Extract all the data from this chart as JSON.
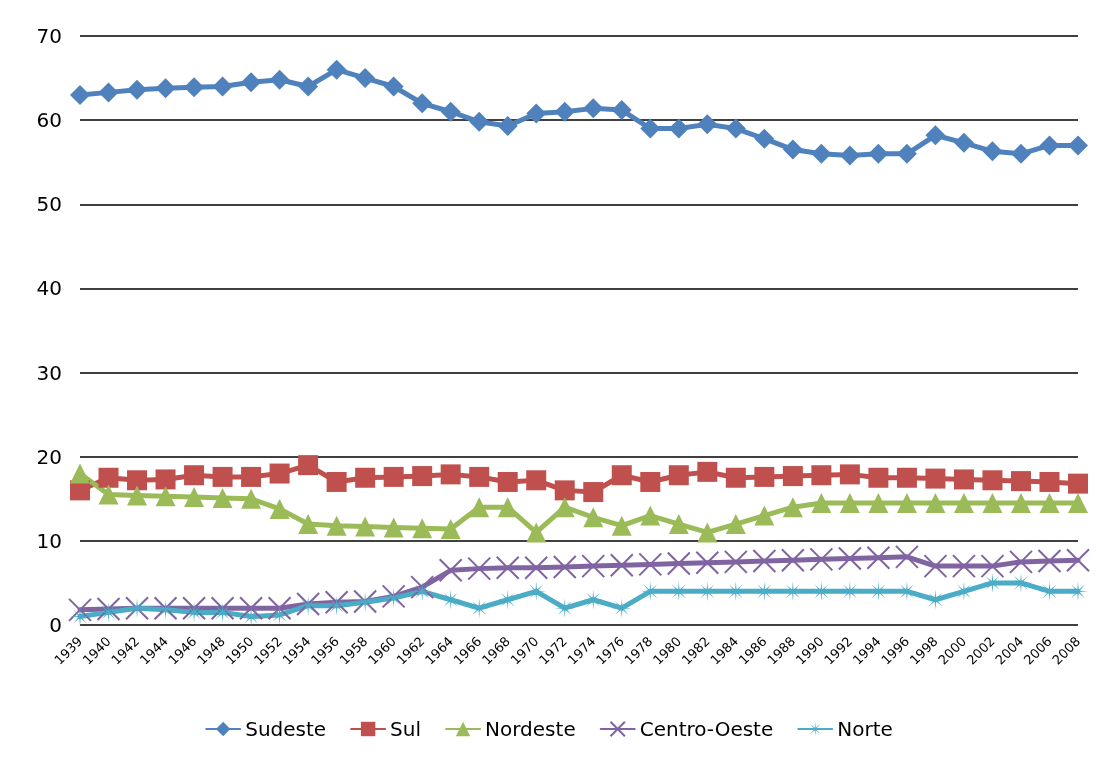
{
  "chart_data": {
    "type": "line",
    "categories": [
      "1939",
      "1940",
      "1942",
      "1944",
      "1946",
      "1948",
      "1950",
      "1952",
      "1954",
      "1956",
      "1958",
      "1960",
      "1962",
      "1964",
      "1966",
      "1968",
      "1970",
      "1972",
      "1974",
      "1976",
      "1978",
      "1980",
      "1982",
      "1984",
      "1986",
      "1988",
      "1990",
      "1992",
      "1994",
      "1996",
      "1998",
      "2000",
      "2002",
      "2004",
      "2006",
      "2008"
    ],
    "series": [
      {
        "name": "Sudeste",
        "color": "#4f81bd",
        "marker": "diamond",
        "values": [
          63,
          63.3,
          63.6,
          63.8,
          63.9,
          64,
          64.5,
          64.8,
          64,
          66,
          65,
          64,
          62,
          61,
          59.8,
          59.3,
          60.8,
          61,
          61.4,
          61.2,
          59,
          59,
          59.5,
          59,
          57.8,
          56.5,
          56,
          55.8,
          56,
          56,
          58.2,
          57.3,
          56.3,
          56,
          57,
          57
        ]
      },
      {
        "name": "Sul",
        "color": "#c0504d",
        "marker": "square",
        "values": [
          16,
          17.5,
          17.2,
          17.3,
          17.8,
          17.6,
          17.6,
          18,
          19,
          17,
          17.5,
          17.6,
          17.7,
          17.9,
          17.6,
          17,
          17.2,
          16,
          15.8,
          17.8,
          17,
          17.8,
          18.2,
          17.5,
          17.6,
          17.7,
          17.8,
          17.9,
          17.5,
          17.5,
          17.4,
          17.3,
          17.2,
          17.1,
          17,
          16.8
        ]
      },
      {
        "name": "Nordeste",
        "color": "#9bbb59",
        "marker": "triangle",
        "values": [
          18,
          15.5,
          15.4,
          15.3,
          15.2,
          15.1,
          15,
          13.8,
          12,
          11.8,
          11.7,
          11.6,
          11.5,
          11.4,
          14,
          14,
          11,
          14,
          12.8,
          11.8,
          13,
          12,
          11,
          12,
          13,
          14,
          14.5,
          14.5,
          14.5,
          14.5,
          14.5,
          14.5,
          14.5,
          14.5,
          14.5,
          14.5
        ]
      },
      {
        "name": "Centro-Oeste",
        "color": "#8064a2",
        "marker": "cross",
        "values": [
          1.8,
          1.9,
          2,
          2,
          2,
          2,
          2,
          2,
          2.5,
          2.7,
          2.8,
          3.4,
          4.5,
          6.5,
          6.7,
          6.8,
          6.8,
          6.9,
          7,
          7.1,
          7.2,
          7.3,
          7.4,
          7.5,
          7.6,
          7.7,
          7.8,
          7.9,
          8,
          8.1,
          7,
          7,
          7,
          7.5,
          7.6,
          7.7
        ]
      },
      {
        "name": "Norte",
        "color": "#4bacc6",
        "marker": "star",
        "values": [
          1,
          1.5,
          2,
          1.8,
          1.5,
          1.5,
          1,
          1.2,
          2.3,
          2.3,
          2.7,
          3.2,
          4,
          3,
          2,
          3,
          4,
          2,
          3,
          2,
          4,
          4,
          4,
          4,
          4,
          4,
          4,
          4,
          4,
          4,
          3,
          4,
          5,
          5,
          4,
          4
        ]
      }
    ],
    "ylim": [
      0,
      70
    ],
    "yticks": [
      0,
      10,
      20,
      30,
      40,
      50,
      60,
      70
    ],
    "grid": "y",
    "legend": "bottom",
    "line_style": "solid"
  }
}
